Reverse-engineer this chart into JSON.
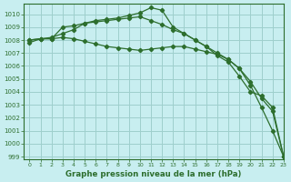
{
  "title": "Graphe pression niveau de la mer (hPa)",
  "bg_color": "#c8eef0",
  "grid_color": "#9ecfcc",
  "line_color": "#2d6e2d",
  "xlim": [
    -0.5,
    23
  ],
  "ylim": [
    998.8,
    1010.8
  ],
  "yticks": [
    999,
    1000,
    1001,
    1002,
    1003,
    1004,
    1005,
    1006,
    1007,
    1008,
    1009,
    1010
  ],
  "xticks": [
    0,
    1,
    2,
    3,
    4,
    5,
    6,
    7,
    8,
    9,
    10,
    11,
    12,
    13,
    14,
    15,
    16,
    17,
    18,
    19,
    20,
    21,
    22,
    23
  ],
  "series": [
    [
      1007.8,
      1008.1,
      1008.1,
      1008.2,
      1008.1,
      1007.9,
      1007.7,
      1007.5,
      1007.4,
      1007.3,
      1007.2,
      1007.3,
      1007.4,
      1007.5,
      1007.5,
      1007.3,
      1007.1,
      1006.9,
      1006.5,
      1005.8,
      1004.5,
      1002.8,
      1001.0,
      999.0
    ],
    [
      1008.0,
      1008.1,
      1008.1,
      1009.0,
      1009.1,
      1009.3,
      1009.4,
      1009.5,
      1009.6,
      1009.7,
      1009.8,
      1009.5,
      1009.2,
      1008.8,
      1008.5,
      1008.0,
      1007.5,
      1007.0,
      1006.5,
      1005.8,
      1004.8,
      1003.5,
      1002.5,
      999.0
    ],
    [
      1008.0,
      1008.1,
      1008.2,
      1008.5,
      1008.8,
      1009.3,
      1009.5,
      1009.6,
      1009.7,
      1009.9,
      1010.1,
      1010.5,
      1010.3,
      1009.0,
      1008.5,
      1008.0,
      1007.5,
      1006.8,
      1006.3,
      1005.2,
      1004.0,
      1003.7,
      1002.8,
      999.0
    ]
  ]
}
